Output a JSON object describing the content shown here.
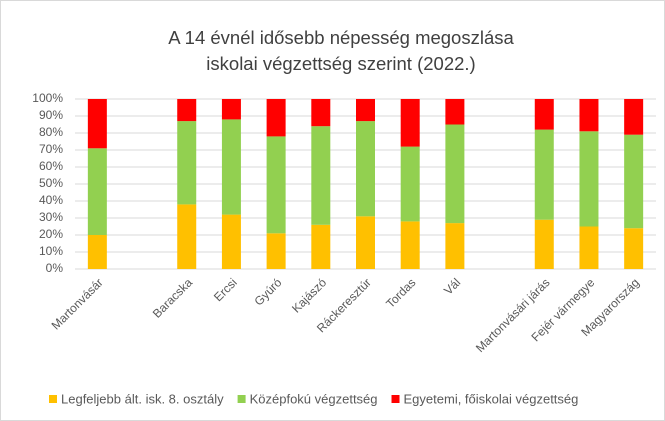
{
  "chart_data": {
    "type": "stacked_bar",
    "title": "A 14 évnél idősebb népesség megoszlása iskolai végzettség szerint (2022.)",
    "categories": [
      "Martonvásár",
      null,
      "Baracska",
      "Ercsi",
      "Gyúró",
      "Kajászó",
      "Ráckeresztúr",
      "Tordas",
      "Vál",
      null,
      "Martonvásári járás",
      "Fejér vármegye",
      "Magyarország"
    ],
    "series": [
      {
        "name": "Legfeljebb ált. isk. 8. osztály",
        "color": "#ffc000",
        "values": [
          20,
          null,
          38,
          32,
          21,
          26,
          31,
          28,
          27,
          null,
          29,
          25,
          24
        ]
      },
      {
        "name": "Középfokú végzettség",
        "color": "#92d050",
        "values": [
          51,
          null,
          49,
          56,
          57,
          58,
          56,
          44,
          58,
          null,
          53,
          56,
          55
        ]
      },
      {
        "name": "Egyetemi, főiskolai végzettség",
        "color": "#ff0000",
        "values": [
          29,
          null,
          13,
          12,
          22,
          16,
          13,
          28,
          15,
          null,
          18,
          19,
          21
        ]
      }
    ],
    "ylim": [
      0,
      100
    ],
    "yticks": [
      {
        "value": 0,
        "label": "0%"
      },
      {
        "value": 10,
        "label": "10%"
      },
      {
        "value": 20,
        "label": "20%"
      },
      {
        "value": 30,
        "label": "30%"
      },
      {
        "value": 40,
        "label": "40%"
      },
      {
        "value": 50,
        "label": "50%"
      },
      {
        "value": 60,
        "label": "60%"
      },
      {
        "value": 70,
        "label": "70%"
      },
      {
        "value": 80,
        "label": "80%"
      },
      {
        "value": 90,
        "label": "90%"
      },
      {
        "value": 100,
        "label": "100%"
      }
    ],
    "grid": true,
    "legend": "bottom"
  }
}
